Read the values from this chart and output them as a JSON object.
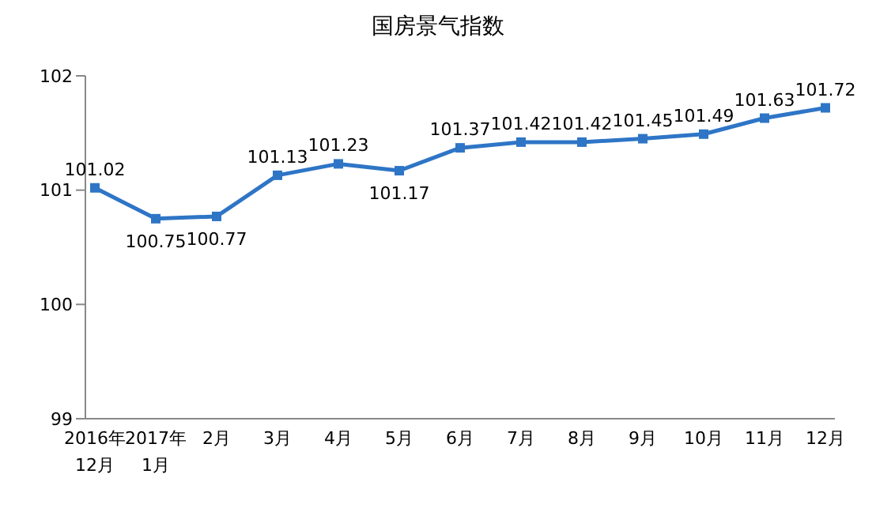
{
  "chart_data": {
    "type": "line",
    "title": "国房景气指数",
    "categories": [
      "2016年\n12月",
      "2017年\n1月",
      "2月",
      "3月",
      "4月",
      "5月",
      "6月",
      "7月",
      "8月",
      "9月",
      "10月",
      "11月",
      "12月"
    ],
    "series": [
      {
        "color": "#2e75c6",
        "values": [
          101.02,
          100.75,
          100.77,
          101.13,
          101.23,
          101.17,
          101.37,
          101.42,
          101.42,
          101.45,
          101.49,
          101.63,
          101.72
        ]
      }
    ],
    "ylim": [
      99,
      102
    ],
    "yticks": [
      99,
      100,
      101,
      102
    ],
    "grid": false,
    "marker": "square",
    "line_style": "solid",
    "data_labels": true
  }
}
